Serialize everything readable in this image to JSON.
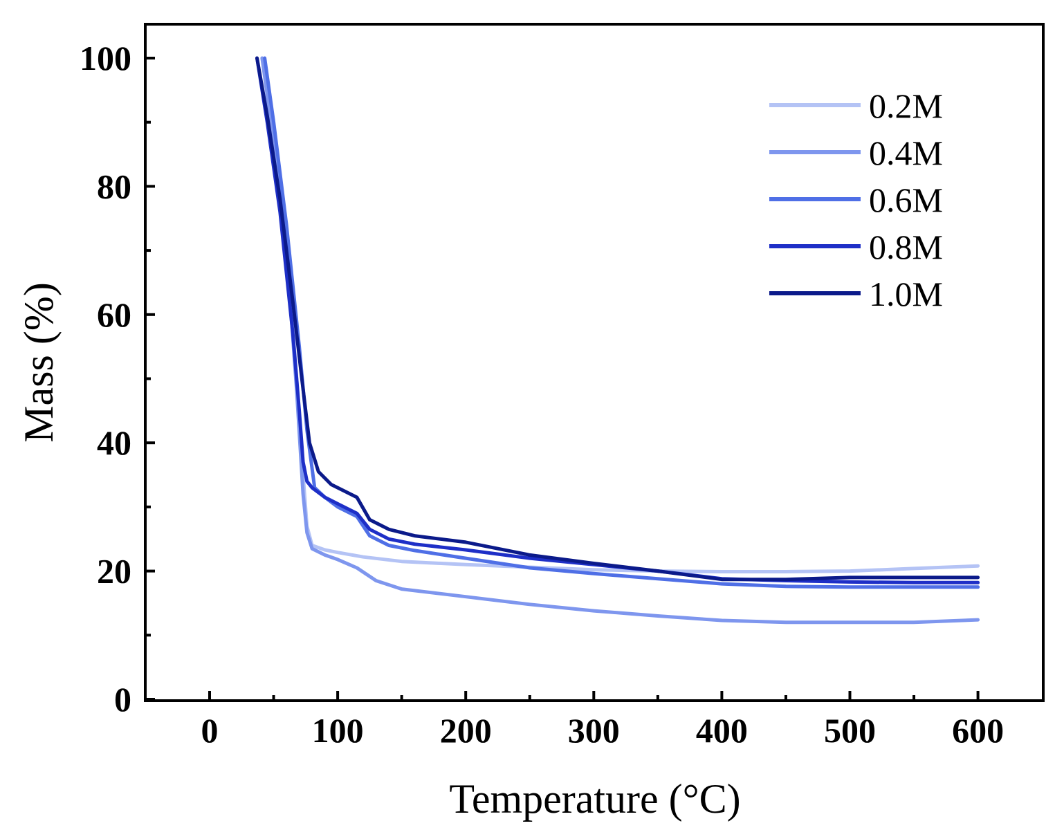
{
  "chart_data": {
    "type": "line",
    "title": "",
    "xlabel": "Temperature (°C)",
    "ylabel": "Mass (%)",
    "xlim": [
      -50,
      650
    ],
    "ylim": [
      0,
      105
    ],
    "xticks": [
      0,
      100,
      200,
      300,
      400,
      500,
      600
    ],
    "xtick_labels": [
      "0",
      "100",
      "200",
      "300",
      "400",
      "500",
      "600"
    ],
    "yticks": [
      0,
      20,
      40,
      60,
      80,
      100
    ],
    "ytick_labels": [
      "0",
      "20",
      "40",
      "60",
      "80",
      "100"
    ],
    "grid": false,
    "legend_position": "top-right",
    "series": [
      {
        "name": "0.2M",
        "color": "#b4c3f5",
        "x": [
          41,
          50,
          60,
          68,
          73,
          76,
          80,
          90,
          100,
          120,
          150,
          200,
          250,
          300,
          350,
          400,
          450,
          500,
          550,
          600
        ],
        "y": [
          100,
          88,
          70,
          50,
          35,
          27,
          24,
          23.3,
          22.9,
          22.2,
          21.5,
          21.0,
          20.6,
          20.2,
          20.0,
          19.9,
          19.9,
          20.0,
          20.4,
          20.8
        ]
      },
      {
        "name": "0.4M",
        "color": "#7e96ee",
        "x": [
          41,
          50,
          60,
          68,
          73,
          76,
          80,
          90,
          100,
          115,
          130,
          150,
          200,
          250,
          300,
          350,
          400,
          450,
          500,
          550,
          600
        ],
        "y": [
          100,
          87,
          70,
          48,
          32,
          26,
          23.5,
          22.5,
          21.8,
          20.5,
          18.5,
          17.2,
          16.0,
          14.8,
          13.8,
          13.0,
          12.3,
          12.0,
          12.0,
          12.0,
          12.4
        ]
      },
      {
        "name": "0.6M",
        "color": "#4f6fe6",
        "x": [
          43,
          50,
          60,
          70,
          76,
          82,
          90,
          100,
          115,
          125,
          140,
          160,
          200,
          250,
          300,
          350,
          400,
          450,
          500,
          550,
          600
        ],
        "y": [
          100,
          90,
          74,
          55,
          42,
          33,
          31.5,
          30,
          28.5,
          25.5,
          24.0,
          23.2,
          22.0,
          20.5,
          19.6,
          18.8,
          18.0,
          17.6,
          17.5,
          17.5,
          17.5
        ]
      },
      {
        "name": "0.8M",
        "color": "#1e2fc7",
        "x": [
          37,
          45,
          55,
          65,
          70,
          73,
          76,
          80,
          90,
          100,
          115,
          125,
          140,
          160,
          200,
          250,
          300,
          350,
          400,
          450,
          500,
          550,
          600
        ],
        "y": [
          100,
          90,
          76,
          57,
          45,
          37,
          34,
          33,
          31.5,
          30.5,
          29.0,
          26.5,
          25.0,
          24.2,
          23.3,
          22.0,
          21.0,
          20.0,
          18.8,
          18.5,
          18.3,
          18.2,
          18.2
        ]
      },
      {
        "name": "1.0M",
        "color": "#0b1a8a",
        "x": [
          37,
          45,
          55,
          65,
          72,
          78,
          85,
          95,
          105,
          115,
          125,
          140,
          160,
          200,
          250,
          300,
          350,
          400,
          450,
          500,
          550,
          600
        ],
        "y": [
          100,
          91,
          78,
          62,
          50,
          40,
          35.5,
          33.5,
          32.5,
          31.5,
          28.0,
          26.5,
          25.5,
          24.5,
          22.5,
          21.2,
          20.0,
          18.7,
          18.7,
          19.0,
          19.0,
          19.0
        ]
      }
    ]
  }
}
